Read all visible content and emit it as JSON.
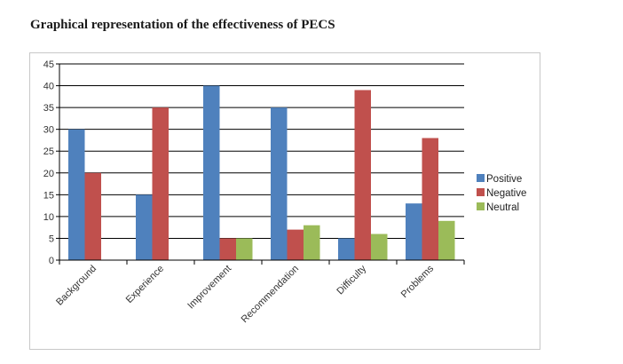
{
  "page": {
    "title": "Graphical representation of the effectiveness of PECS"
  },
  "chart_data": {
    "type": "bar",
    "title": "",
    "xlabel": "",
    "ylabel": "",
    "categories": [
      "Background",
      "Experience",
      "Improvement",
      "Recommendation",
      "Difficulty",
      "Problems"
    ],
    "series": [
      {
        "name": "Positive",
        "color": "#4f81bd",
        "values": [
          30,
          15,
          40,
          35,
          5,
          13
        ]
      },
      {
        "name": "Negative",
        "color": "#c0504d",
        "values": [
          20,
          35,
          5,
          7,
          39,
          28
        ]
      },
      {
        "name": "Neutral",
        "color": "#9bbb59",
        "values": [
          0,
          0,
          5,
          8,
          6,
          9
        ]
      }
    ],
    "ylim": [
      0,
      45
    ],
    "yticks": [
      0,
      5,
      10,
      15,
      20,
      25,
      30,
      35,
      40,
      45
    ],
    "grid": true,
    "legend_position": "right"
  }
}
